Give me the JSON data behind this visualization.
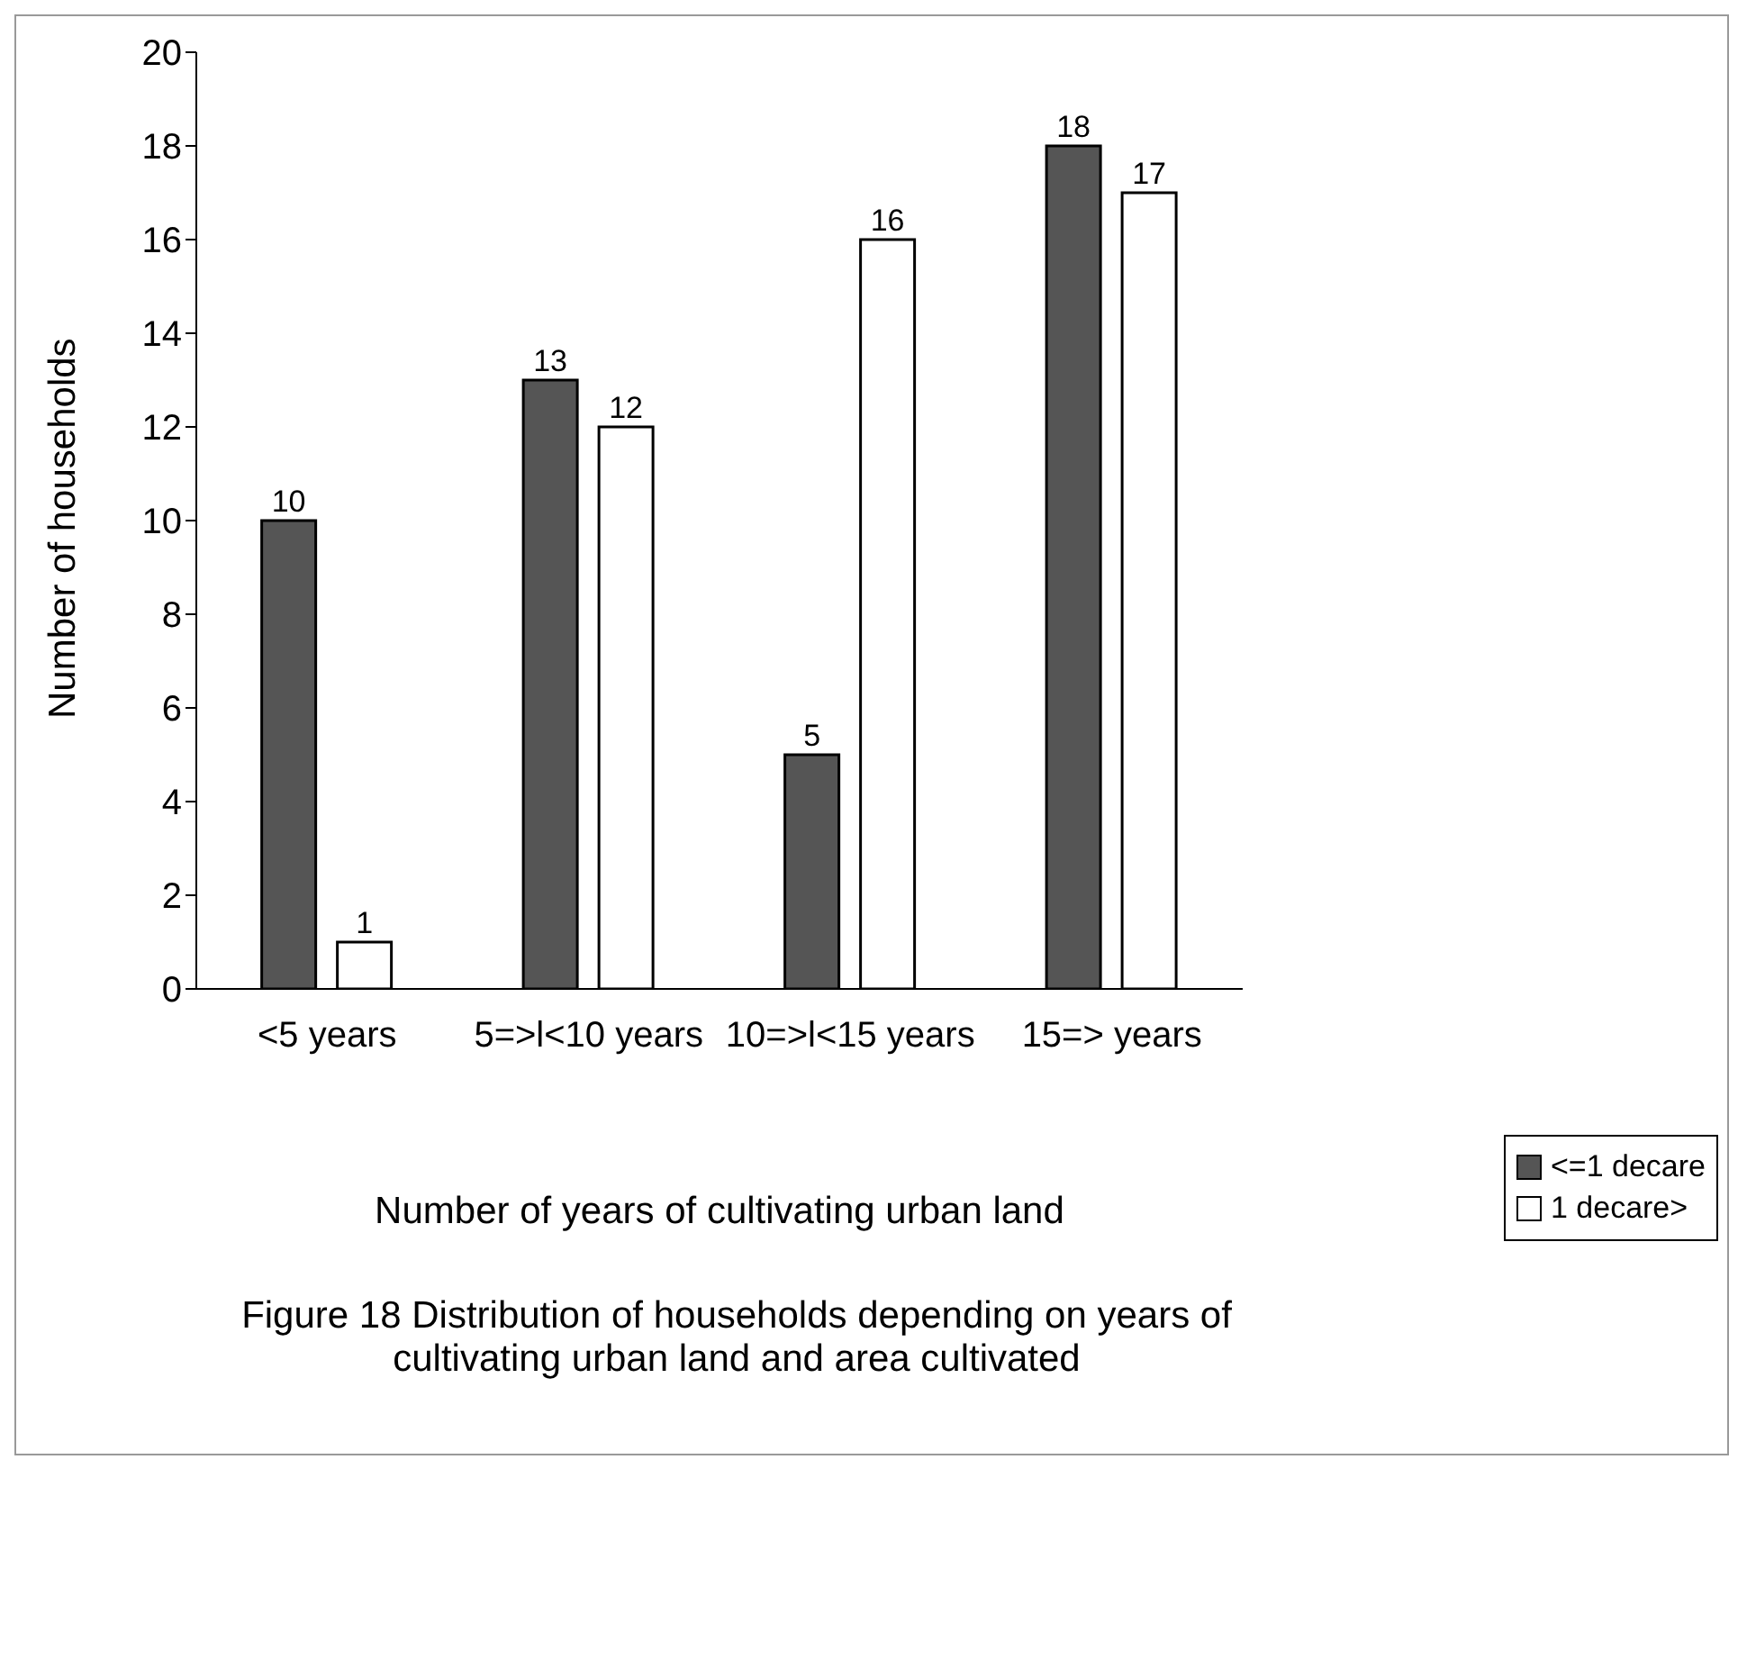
{
  "chart_data": {
    "type": "bar",
    "xlabel": "Number of years of cultivating urban land",
    "ylabel": "Number of households",
    "categories": [
      "<5 years",
      "5=>l<10 years",
      "10=>l<15 years",
      "15=> years"
    ],
    "series": [
      {
        "name": "<=1 decare",
        "color": "#555555",
        "values": [
          10,
          13,
          5,
          18
        ]
      },
      {
        "name": "1 decare>",
        "color": "#ffffff",
        "values": [
          1,
          12,
          16,
          17
        ]
      }
    ],
    "ylim": [
      0,
      20
    ],
    "yticks": [
      0,
      2,
      4,
      6,
      8,
      10,
      12,
      14,
      16,
      18,
      20
    ],
    "grid": false,
    "legend": "bottom right",
    "data_labels": true,
    "annotations": [
      "Figure 18  Distribution of households depending on years of cultivating urban land and  area cultivated"
    ]
  }
}
